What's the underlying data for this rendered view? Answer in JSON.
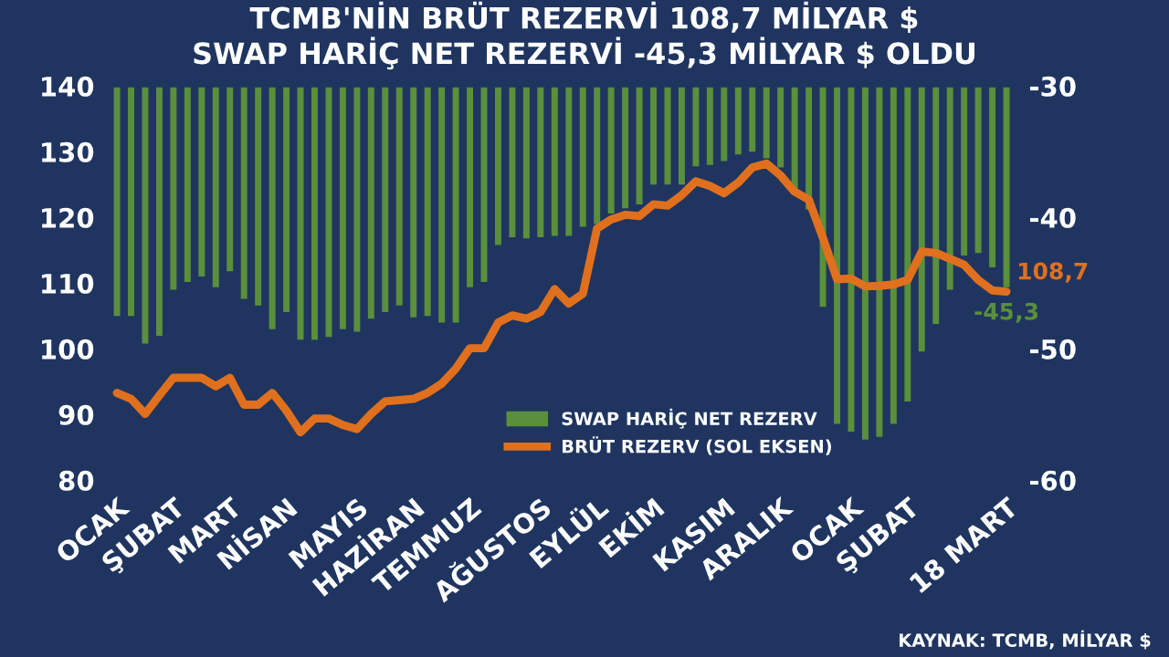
{
  "chart_data": {
    "type": "bar",
    "title": "TCMB'NİN BRÜT REZERVİ 108,7 MİLYAR $\nSWAP HARİÇ NET REZERVİ -45,3 MİLYAR $ OLDU",
    "categories": [
      "OCAK",
      null,
      null,
      null,
      "ŞUBAT",
      null,
      null,
      null,
      "MART",
      null,
      null,
      null,
      "NİSAN",
      null,
      null,
      null,
      null,
      "MAYIS",
      null,
      null,
      null,
      "HAZİRAN",
      null,
      null,
      null,
      "TEMMUZ",
      null,
      null,
      null,
      null,
      "AĞUSTOS",
      null,
      null,
      null,
      "EYLÜL",
      null,
      null,
      null,
      "EKİM",
      null,
      null,
      null,
      null,
      "KASIM",
      null,
      null,
      null,
      "ARALIK",
      null,
      null,
      null,
      null,
      "OCAK",
      null,
      null,
      null,
      "ŞUBAT",
      null,
      null,
      null,
      null,
      null,
      null,
      "18 MART"
    ],
    "series": [
      {
        "name": "SWAP HARİÇ NET REZERV",
        "axis": "y2",
        "color": "#5a8f3c",
        "values": [
          -47.5,
          -47.5,
          -49.6,
          -49.0,
          -45.5,
          -44.9,
          -44.5,
          -45.3,
          -44.1,
          -46.2,
          -46.7,
          -48.5,
          -47.2,
          -49.3,
          -49.3,
          -49.1,
          -48.5,
          -48.7,
          -47.7,
          -47.2,
          -46.7,
          -47.6,
          -47.5,
          -48.0,
          -48.0,
          -45.3,
          -44.9,
          -42.1,
          -41.5,
          -41.6,
          -41.5,
          -41.4,
          -41.4,
          -40.7,
          -40.5,
          -39.7,
          -39.3,
          -39.0,
          -37.5,
          -37.5,
          -37.5,
          -36.1,
          -36.0,
          -35.7,
          -35.2,
          -35.0,
          -35.5,
          -36.2,
          -38.1,
          -39.4,
          -46.8,
          -55.7,
          -56.3,
          -56.9,
          -56.7,
          -55.7,
          -54.0,
          -50.2,
          -48.1,
          -45.5,
          -42.9,
          -42.7,
          -43.8,
          -45.3
        ],
        "value_labels": [
          null,
          null,
          null,
          null,
          null,
          null,
          null,
          null,
          null,
          null,
          null,
          null,
          null,
          null,
          null,
          null,
          null,
          null,
          null,
          null,
          null,
          null,
          null,
          null,
          null,
          null,
          null,
          null,
          null,
          null,
          null,
          null,
          null,
          null,
          null,
          null,
          null,
          null,
          null,
          null,
          null,
          null,
          null,
          null,
          null,
          null,
          null,
          null,
          null,
          null,
          null,
          null,
          null,
          null,
          null,
          null,
          null,
          null,
          null,
          null,
          null,
          null,
          null,
          "-45,3"
        ]
      },
      {
        "name": "BRÜT REZERV (SOL EKSEN)",
        "type": "line",
        "color": "#e0701e",
        "values": [
          93.3,
          92.4,
          90.1,
          92.9,
          95.6,
          95.6,
          95.6,
          94.3,
          95.6,
          91.5,
          91.5,
          93.3,
          90.6,
          87.3,
          89.4,
          89.4,
          88.4,
          87.8,
          90.1,
          92.0,
          92.2,
          92.4,
          93.3,
          94.7,
          97.0,
          100.1,
          100.1,
          104.0,
          105.1,
          104.6,
          105.6,
          109.1,
          106.9,
          108.4,
          118.3,
          119.7,
          120.4,
          120.2,
          122.0,
          121.8,
          123.4,
          125.5,
          124.8,
          123.7,
          125.3,
          127.6,
          128.2,
          126.4,
          123.9,
          122.7,
          116.9,
          110.6,
          110.7,
          109.5,
          109.6,
          109.8,
          110.5,
          114.8,
          114.6,
          113.7,
          112.8,
          110.5,
          108.9,
          108.7
        ],
        "value_labels": [
          null,
          null,
          null,
          null,
          null,
          null,
          null,
          null,
          null,
          null,
          null,
          null,
          null,
          null,
          null,
          null,
          null,
          null,
          null,
          null,
          null,
          null,
          null,
          null,
          null,
          null,
          null,
          null,
          null,
          null,
          null,
          null,
          null,
          null,
          null,
          null,
          null,
          null,
          null,
          null,
          null,
          null,
          null,
          null,
          null,
          null,
          null,
          null,
          null,
          null,
          null,
          null,
          null,
          null,
          null,
          null,
          null,
          null,
          null,
          null,
          null,
          null,
          null,
          "108,7"
        ]
      }
    ],
    "ylim": [
      80,
      140
    ],
    "yticks": [
      80,
      90,
      100,
      110,
      120,
      130,
      140
    ],
    "y2lim": [
      -60,
      -30
    ],
    "y2ticks": [
      -60,
      -50,
      -40,
      -30
    ],
    "legend": "bottom",
    "grid": false,
    "annotations": [
      "KAYNAK: TCMB, MİLYAR $"
    ]
  }
}
